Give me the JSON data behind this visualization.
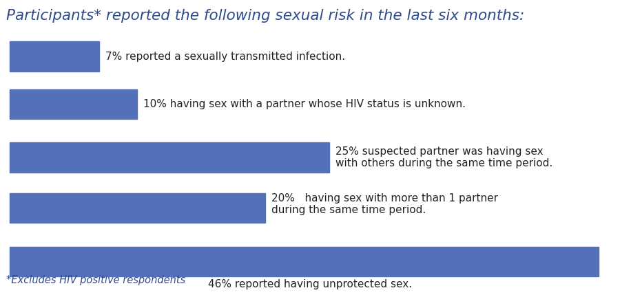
{
  "title": "Participants* reported the following sexual risk in the last six months:",
  "title_color": "#2E4B8E",
  "title_fontsize": 15.5,
  "bar_color": "#5470B8",
  "background_color": "#FFFFFF",
  "footnote": "*Excludes HIV positive respondents",
  "footnote_color": "#2E4B8E",
  "footnote_fontsize": 10.5,
  "bars": [
    {
      "value": 7,
      "max": 46,
      "label_lines": [
        "7% reported a sexually transmitted infection."
      ],
      "label_align": "right_of_bar",
      "label_va": "center"
    },
    {
      "value": 10,
      "max": 46,
      "label_lines": [
        "10% having sex with a partner whose HIV status is unknown."
      ],
      "label_align": "right_of_bar",
      "label_va": "center"
    },
    {
      "value": 25,
      "max": 46,
      "label_lines": [
        "25% suspected partner was having sex",
        "with others during the same time period."
      ],
      "label_align": "right_of_bar",
      "label_va": "center"
    },
    {
      "value": 20,
      "max": 46,
      "label_lines": [
        "20%   having sex with more than 1 partner",
        "during the same time period."
      ],
      "label_align": "right_of_bar",
      "label_va": "top"
    },
    {
      "value": 46,
      "max": 46,
      "label_lines": [
        "46% reported having unprotected sex."
      ],
      "label_align": "below_bar",
      "label_va": "top"
    }
  ],
  "text_fontsize": 11.0,
  "text_color": "#222222"
}
